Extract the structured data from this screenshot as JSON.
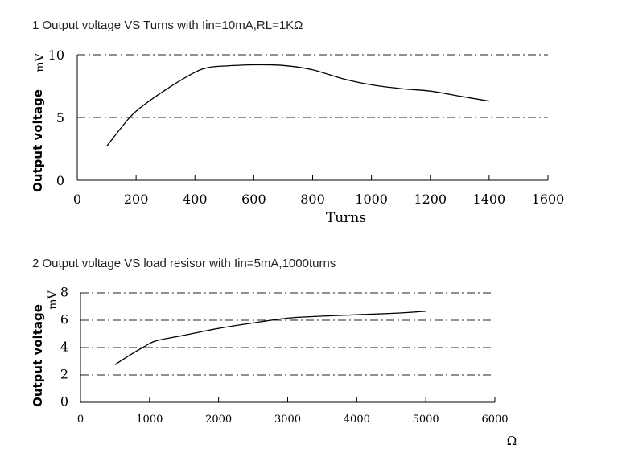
{
  "chart_data": [
    {
      "type": "line",
      "title": "1 Output voltage VS Turns with Iin=10mA,RL=1KΩ",
      "xlabel": "Turns",
      "ylabel": "Output voltage",
      "yunit": "mV",
      "xlim": [
        0,
        1600
      ],
      "ylim": [
        0,
        10
      ],
      "xticks": [
        "0",
        "200",
        "400",
        "600",
        "800",
        "1000",
        "1200",
        "1400",
        "1600"
      ],
      "yticks": [
        "0",
        "5",
        "10"
      ],
      "grid_y": [
        5,
        10
      ],
      "series": [
        {
          "x": [
            100,
            150,
            200,
            300,
            400,
            450,
            500,
            600,
            700,
            800,
            900,
            1000,
            1100,
            1200,
            1300,
            1400
          ],
          "y": [
            2.7,
            4.2,
            5.5,
            7.2,
            8.6,
            9.0,
            9.1,
            9.2,
            9.15,
            8.8,
            8.1,
            7.6,
            7.3,
            7.1,
            6.7,
            6.3
          ]
        }
      ]
    },
    {
      "type": "line",
      "title": "2 Output voltage VS load resisor with Iin=5mA,1000turns",
      "xlabel": "Ω",
      "ylabel": "Output voltage",
      "yunit": "mV",
      "xlim": [
        0,
        6000
      ],
      "ylim": [
        0,
        8
      ],
      "xticks": [
        "0",
        "1000",
        "2000",
        "3000",
        "4000",
        "5000",
        "6000"
      ],
      "yticks": [
        "0",
        "2",
        "4",
        "6",
        "8"
      ],
      "grid_y": [
        2,
        4,
        6,
        8
      ],
      "series": [
        {
          "x": [
            500,
            700,
            900,
            1100,
            1500,
            2000,
            2500,
            3000,
            3500,
            4000,
            4500,
            5000
          ],
          "y": [
            2.75,
            3.4,
            4.0,
            4.5,
            4.9,
            5.4,
            5.8,
            6.15,
            6.3,
            6.4,
            6.5,
            6.65
          ]
        }
      ]
    }
  ]
}
